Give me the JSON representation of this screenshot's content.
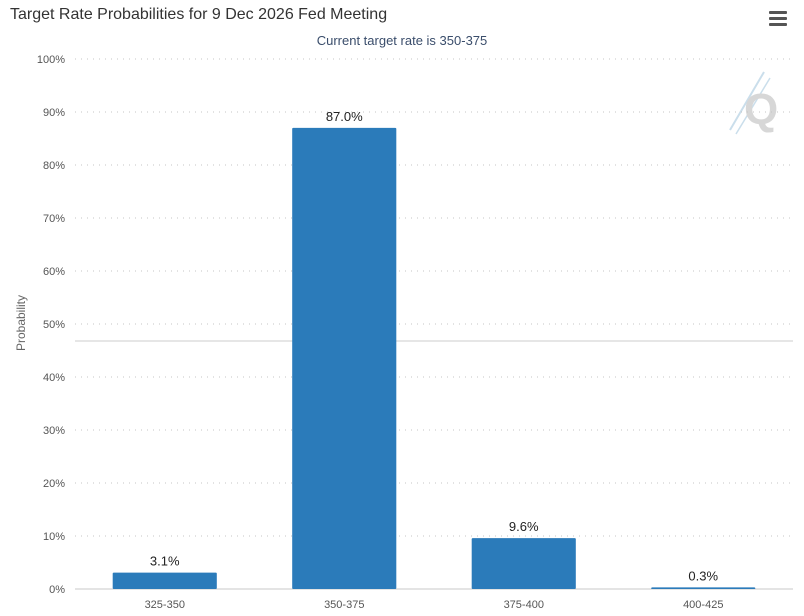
{
  "chart_data": {
    "type": "bar",
    "title": "Target Rate Probabilities for 9 Dec 2026 Fed Meeting",
    "subtitle": "Current target rate is 350-375",
    "xlabel": "",
    "ylabel": "Probability",
    "categories": [
      "325-350",
      "350-375",
      "375-400",
      "400-425"
    ],
    "values": [
      3.1,
      87.0,
      9.6,
      0.3
    ],
    "data_labels": [
      "3.1%",
      "87.0%",
      "9.6%",
      "0.3%"
    ],
    "ylim": [
      0,
      100
    ],
    "y_ticks": [
      0,
      10,
      20,
      30,
      40,
      50,
      60,
      70,
      80,
      90,
      100
    ],
    "y_tick_labels": [
      "0%",
      "10%",
      "20%",
      "30%",
      "40%",
      "50%",
      "60%",
      "70%",
      "80%",
      "90%",
      "100%"
    ],
    "grid": true,
    "bar_color": "#2b7bba"
  },
  "menu": {
    "icon": "hamburger-menu-icon"
  },
  "watermark": {
    "icon": "quikstrike-logo-icon",
    "text": "Q"
  }
}
